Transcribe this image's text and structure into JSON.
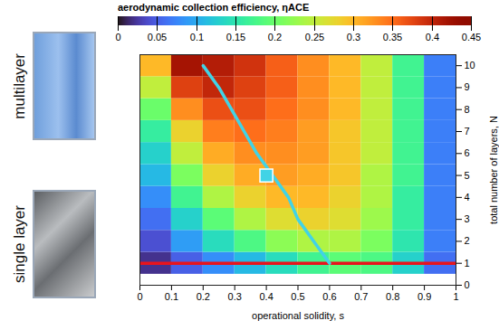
{
  "chart_data": {
    "type": "heatmap",
    "x_label": "operational solidity, s",
    "y_label": "total number of layers, N",
    "xlim": [
      0,
      1
    ],
    "xticks": [
      0,
      0.1,
      0.2,
      0.3,
      0.4,
      0.5,
      0.6,
      0.7,
      0.8,
      0.9,
      1
    ],
    "ylim": [
      0,
      10.5
    ],
    "yticks": [
      0,
      1,
      2,
      3,
      4,
      5,
      6,
      7,
      8,
      9,
      10
    ],
    "x_edges": [
      0,
      0.1,
      0.2,
      0.3,
      0.4,
      0.5,
      0.6,
      0.7,
      0.8,
      0.9,
      1
    ],
    "y_edges": [
      0.5,
      1.5,
      2.5,
      3.5,
      4.5,
      5.5,
      6.5,
      7.5,
      8.5,
      9.5,
      10.5
    ],
    "cells": [
      [
        0.02,
        0.05,
        0.08,
        0.11,
        0.14,
        0.17,
        0.19,
        0.18,
        0.13,
        0.06
      ],
      [
        0.04,
        0.09,
        0.14,
        0.18,
        0.22,
        0.24,
        0.24,
        0.21,
        0.15,
        0.07
      ],
      [
        0.06,
        0.13,
        0.19,
        0.24,
        0.27,
        0.28,
        0.27,
        0.23,
        0.16,
        0.07
      ],
      [
        0.08,
        0.17,
        0.24,
        0.28,
        0.3,
        0.3,
        0.28,
        0.24,
        0.16,
        0.07
      ],
      [
        0.11,
        0.21,
        0.28,
        0.31,
        0.32,
        0.31,
        0.29,
        0.24,
        0.17,
        0.07
      ],
      [
        0.13,
        0.25,
        0.31,
        0.33,
        0.33,
        0.32,
        0.29,
        0.25,
        0.17,
        0.07
      ],
      [
        0.16,
        0.28,
        0.34,
        0.35,
        0.34,
        0.32,
        0.29,
        0.25,
        0.17,
        0.07
      ],
      [
        0.2,
        0.33,
        0.37,
        0.37,
        0.35,
        0.33,
        0.3,
        0.25,
        0.17,
        0.07
      ],
      [
        0.25,
        0.38,
        0.4,
        0.38,
        0.36,
        0.33,
        0.3,
        0.25,
        0.17,
        0.07
      ],
      [
        0.3,
        0.42,
        0.41,
        0.39,
        0.36,
        0.33,
        0.3,
        0.25,
        0.17,
        0.07
      ]
    ],
    "colorbar": {
      "label": "aerodynamic collection efficiency, ηACE",
      "range": [
        0,
        0.45
      ],
      "ticks": [
        0,
        0.05,
        0.1,
        0.15,
        0.2,
        0.25,
        0.3,
        0.35,
        0.4,
        0.45
      ]
    },
    "lines": [
      {
        "color": "#e8141c",
        "s": [
          0,
          1
        ],
        "N": [
          1,
          1
        ]
      },
      {
        "color": "#41d3e6",
        "s": [
          0.6,
          0.55,
          0.5,
          0.47,
          0.42,
          0.37,
          0.33,
          0.29,
          0.25,
          0.2
        ],
        "N": [
          1,
          2,
          3,
          4,
          5,
          6,
          7,
          8,
          9,
          10
        ]
      }
    ],
    "point": {
      "s": 0.4,
      "N": 5,
      "color": "#41d3e6",
      "marker": "square"
    },
    "panel_labels": [
      "multilayer",
      "single layer"
    ]
  }
}
